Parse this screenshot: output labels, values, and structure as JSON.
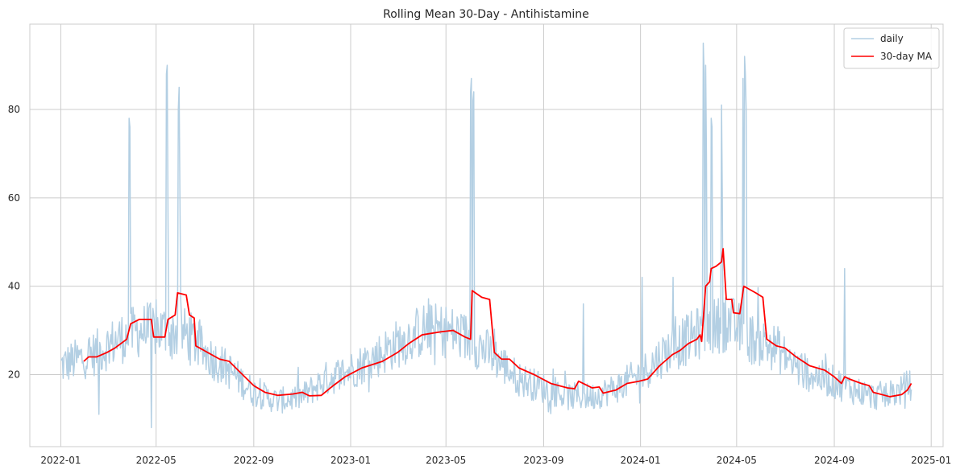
{
  "chart_data": {
    "type": "line",
    "title": "Rolling Mean 30-Day - Antihistamine",
    "xlabel": "",
    "ylabel": "",
    "x_range": [
      "2021-11-23",
      "2025-01-16"
    ],
    "y_range": [
      3.7,
      99.3
    ],
    "x_ticks": [
      {
        "date": "2022-01-01",
        "label": "2022-01"
      },
      {
        "date": "2022-05-01",
        "label": "2022-05"
      },
      {
        "date": "2022-09-01",
        "label": "2022-09"
      },
      {
        "date": "2023-01-01",
        "label": "2023-01"
      },
      {
        "date": "2023-05-01",
        "label": "2023-05"
      },
      {
        "date": "2023-09-01",
        "label": "2023-09"
      },
      {
        "date": "2024-01-01",
        "label": "2024-01"
      },
      {
        "date": "2024-05-01",
        "label": "2024-05"
      },
      {
        "date": "2024-09-01",
        "label": "2024-09"
      },
      {
        "date": "2025-01-01",
        "label": "2025-01"
      }
    ],
    "y_ticks": [
      20,
      40,
      60,
      80
    ],
    "grid": true,
    "legend": {
      "position": "top-right"
    },
    "series": [
      {
        "name": "daily",
        "color": "#b3cfe3",
        "start": "2022-01-01",
        "end": "2024-12-07",
        "baseline": [
          [
            "2022-01-01",
            22
          ],
          [
            "2022-02-15",
            25
          ],
          [
            "2022-03-15",
            28
          ],
          [
            "2022-04-10",
            30
          ],
          [
            "2022-05-10",
            30
          ],
          [
            "2022-06-10",
            29
          ],
          [
            "2022-07-01",
            25
          ],
          [
            "2022-08-01",
            21
          ],
          [
            "2022-09-01",
            16
          ],
          [
            "2022-10-01",
            14
          ],
          [
            "2022-11-01",
            15
          ],
          [
            "2022-12-01",
            19
          ],
          [
            "2023-01-01",
            21
          ],
          [
            "2023-02-01",
            24
          ],
          [
            "2023-03-01",
            27
          ],
          [
            "2023-04-01",
            30
          ],
          [
            "2023-05-01",
            30
          ],
          [
            "2023-05-31",
            28
          ],
          [
            "2023-07-01",
            24
          ],
          [
            "2023-08-01",
            19
          ],
          [
            "2023-09-01",
            17
          ],
          [
            "2023-10-01",
            15
          ],
          [
            "2023-11-01",
            15
          ],
          [
            "2023-12-01",
            17
          ],
          [
            "2024-01-01",
            20
          ],
          [
            "2024-02-01",
            25
          ],
          [
            "2024-03-01",
            28
          ],
          [
            "2024-03-20",
            30
          ],
          [
            "2024-04-20",
            32
          ],
          [
            "2024-05-20",
            28
          ],
          [
            "2024-06-20",
            26
          ],
          [
            "2024-07-20",
            21
          ],
          [
            "2024-08-20",
            19
          ],
          [
            "2024-09-20",
            17
          ],
          [
            "2024-10-20",
            15
          ],
          [
            "2024-11-20",
            16
          ],
          [
            "2024-12-07",
            18
          ]
        ],
        "spikes": [
          {
            "date": "2022-03-28",
            "value": 78
          },
          {
            "date": "2022-03-29",
            "value": 76
          },
          {
            "date": "2022-04-25",
            "value": 8
          },
          {
            "date": "2022-05-14",
            "value": 88
          },
          {
            "date": "2022-05-15",
            "value": 90
          },
          {
            "date": "2022-05-16",
            "value": 55
          },
          {
            "date": "2022-05-29",
            "value": 80
          },
          {
            "date": "2022-05-30",
            "value": 85
          },
          {
            "date": "2022-05-31",
            "value": 60
          },
          {
            "date": "2022-02-18",
            "value": 11
          },
          {
            "date": "2023-06-01",
            "value": 84
          },
          {
            "date": "2023-06-02",
            "value": 87
          },
          {
            "date": "2023-06-04",
            "value": 82
          },
          {
            "date": "2023-06-05",
            "value": 84
          },
          {
            "date": "2023-10-21",
            "value": 36
          },
          {
            "date": "2024-01-03",
            "value": 42
          },
          {
            "date": "2024-02-11",
            "value": 42
          },
          {
            "date": "2024-03-20",
            "value": 95
          },
          {
            "date": "2024-03-21",
            "value": 88
          },
          {
            "date": "2024-03-23",
            "value": 90
          },
          {
            "date": "2024-03-24",
            "value": 70
          },
          {
            "date": "2024-03-30",
            "value": 78
          },
          {
            "date": "2024-03-31",
            "value": 76
          },
          {
            "date": "2024-04-12",
            "value": 81
          },
          {
            "date": "2024-04-13",
            "value": 60
          },
          {
            "date": "2024-05-09",
            "value": 87
          },
          {
            "date": "2024-05-11",
            "value": 92
          },
          {
            "date": "2024-05-12",
            "value": 88
          },
          {
            "date": "2024-05-13",
            "value": 80
          },
          {
            "date": "2024-09-14",
            "value": 44
          }
        ]
      },
      {
        "name": "30-day MA",
        "color": "#ff0000",
        "points": [
          [
            "2022-01-30",
            23
          ],
          [
            "2022-02-05",
            24
          ],
          [
            "2022-02-15",
            24
          ],
          [
            "2022-02-28",
            25
          ],
          [
            "2022-03-10",
            26
          ],
          [
            "2022-03-25",
            28
          ],
          [
            "2022-03-30",
            31.5
          ],
          [
            "2022-04-10",
            32.5
          ],
          [
            "2022-04-25",
            32.5
          ],
          [
            "2022-04-28",
            28.5
          ],
          [
            "2022-05-12",
            28.5
          ],
          [
            "2022-05-16",
            32.5
          ],
          [
            "2022-05-25",
            33.5
          ],
          [
            "2022-05-28",
            38.5
          ],
          [
            "2022-06-08",
            38
          ],
          [
            "2022-06-12",
            33.5
          ],
          [
            "2022-06-18",
            32.8
          ],
          [
            "2022-06-20",
            26.5
          ],
          [
            "2022-07-05",
            25
          ],
          [
            "2022-07-20",
            23.5
          ],
          [
            "2022-08-01",
            23
          ],
          [
            "2022-08-15",
            20.5
          ],
          [
            "2022-09-01",
            17.5
          ],
          [
            "2022-09-15",
            16
          ],
          [
            "2022-10-01",
            15.3
          ],
          [
            "2022-10-20",
            15.6
          ],
          [
            "2022-11-01",
            16
          ],
          [
            "2022-11-10",
            15.2
          ],
          [
            "2022-11-25",
            15.3
          ],
          [
            "2022-12-10",
            17.5
          ],
          [
            "2022-12-25",
            19.5
          ],
          [
            "2023-01-15",
            21.5
          ],
          [
            "2023-02-10",
            23
          ],
          [
            "2023-03-01",
            25
          ],
          [
            "2023-03-15",
            27
          ],
          [
            "2023-04-01",
            29
          ],
          [
            "2023-04-25",
            29.7
          ],
          [
            "2023-05-10",
            30
          ],
          [
            "2023-05-25",
            28.5
          ],
          [
            "2023-06-01",
            28
          ],
          [
            "2023-06-03",
            39
          ],
          [
            "2023-06-15",
            37.5
          ],
          [
            "2023-06-25",
            37
          ],
          [
            "2023-07-01",
            25
          ],
          [
            "2023-07-10",
            23.5
          ],
          [
            "2023-07-20",
            23.5
          ],
          [
            "2023-08-01",
            21.5
          ],
          [
            "2023-08-20",
            20
          ],
          [
            "2023-09-10",
            18
          ],
          [
            "2023-10-01",
            17
          ],
          [
            "2023-10-10",
            16.8
          ],
          [
            "2023-10-15",
            18.5
          ],
          [
            "2023-11-01",
            17
          ],
          [
            "2023-11-10",
            17.2
          ],
          [
            "2023-11-15",
            15.8
          ],
          [
            "2023-12-01",
            16.5
          ],
          [
            "2023-12-15",
            18
          ],
          [
            "2023-12-30",
            18.5
          ],
          [
            "2024-01-10",
            19
          ],
          [
            "2024-01-25",
            22
          ],
          [
            "2024-02-10",
            24.5
          ],
          [
            "2024-02-20",
            25.5
          ],
          [
            "2024-03-01",
            27
          ],
          [
            "2024-03-12",
            28
          ],
          [
            "2024-03-16",
            29
          ],
          [
            "2024-03-18",
            27.5
          ],
          [
            "2024-03-23",
            40
          ],
          [
            "2024-03-28",
            41
          ],
          [
            "2024-03-30",
            44
          ],
          [
            "2024-04-05",
            44.5
          ],
          [
            "2024-04-12",
            45.5
          ],
          [
            "2024-04-14",
            48.5
          ],
          [
            "2024-04-18",
            37
          ],
          [
            "2024-04-25",
            37
          ],
          [
            "2024-04-27",
            34
          ],
          [
            "2024-05-05",
            33.8
          ],
          [
            "2024-05-10",
            40
          ],
          [
            "2024-05-20",
            39
          ],
          [
            "2024-05-25",
            38.5
          ],
          [
            "2024-06-03",
            37.5
          ],
          [
            "2024-06-08",
            28
          ],
          [
            "2024-06-20",
            26.5
          ],
          [
            "2024-07-01",
            26
          ],
          [
            "2024-07-15",
            24
          ],
          [
            "2024-08-01",
            22
          ],
          [
            "2024-08-20",
            21
          ],
          [
            "2024-09-01",
            19.5
          ],
          [
            "2024-09-10",
            18
          ],
          [
            "2024-09-14",
            19.5
          ],
          [
            "2024-09-20",
            19
          ],
          [
            "2024-10-05",
            18
          ],
          [
            "2024-10-15",
            17.5
          ],
          [
            "2024-10-20",
            16
          ],
          [
            "2024-11-10",
            15
          ],
          [
            "2024-11-25",
            15.5
          ],
          [
            "2024-12-02",
            16.5
          ],
          [
            "2024-12-07",
            18
          ]
        ]
      }
    ]
  }
}
